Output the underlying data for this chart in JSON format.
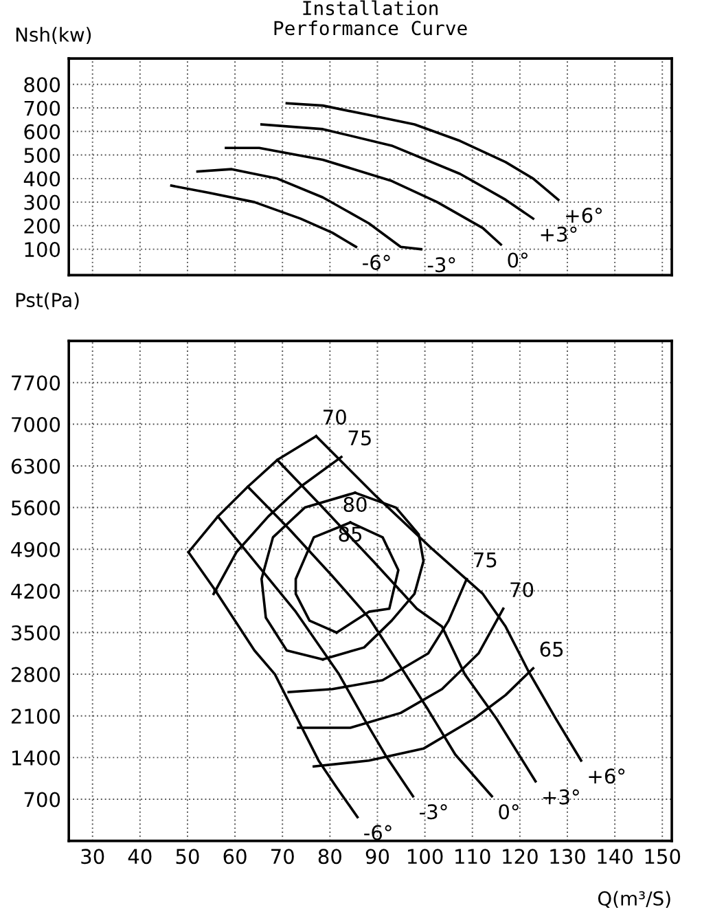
{
  "chart_data": [
    {
      "type": "line",
      "title": "Installation\nPerformance Curve",
      "ylabel": "Nsh(kw)",
      "xlim": [
        25,
        152
      ],
      "ylim": [
        -10,
        910
      ],
      "xticks": [
        30,
        40,
        50,
        60,
        70,
        80,
        90,
        100,
        110,
        120,
        130,
        140,
        150
      ],
      "yticks": [
        100,
        200,
        300,
        400,
        500,
        600,
        700,
        800
      ],
      "tick_labels": "y",
      "grid": true,
      "series": [
        {
          "name": "+6°",
          "color": "#000000",
          "x": [
            70.9,
            78.5,
            88.2,
            97.8,
            107.4,
            117.0,
            122.8,
            128.1
          ],
          "values": [
            720,
            710,
            670,
            630,
            560,
            470,
            400,
            310
          ]
        },
        {
          "name": "+3°",
          "color": "#000000",
          "x": [
            65.6,
            78.5,
            93.0,
            107.4,
            117.0,
            122.8
          ],
          "values": [
            630,
            610,
            540,
            420,
            310,
            230
          ]
        },
        {
          "name": "0°",
          "color": "#000000",
          "x": [
            58.1,
            65.1,
            78.5,
            93.0,
            102.6,
            112.2,
            116.0
          ],
          "values": [
            530,
            530,
            480,
            390,
            300,
            190,
            120
          ]
        },
        {
          "name": "-3°",
          "color": "#000000",
          "x": [
            52.1,
            59.3,
            68.9,
            78.5,
            88.2,
            94.9,
            99.2
          ],
          "values": [
            430,
            440,
            400,
            320,
            210,
            110,
            100
          ]
        },
        {
          "name": "-6°",
          "color": "#000000",
          "x": [
            46.6,
            54.5,
            64.1,
            73.8,
            80.5,
            85.5
          ],
          "values": [
            370,
            340,
            300,
            230,
            170,
            110
          ]
        }
      ]
    },
    {
      "type": "line",
      "ylabel": "Pst(Pa)",
      "xlabel": "Q(m³/S)",
      "xlim": [
        25,
        152
      ],
      "ylim": [
        0,
        8400
      ],
      "xticks": [
        30,
        40,
        50,
        60,
        70,
        80,
        90,
        100,
        110,
        120,
        130,
        140,
        150
      ],
      "yticks": [
        700,
        1400,
        2100,
        2800,
        3500,
        4200,
        4900,
        5600,
        6300,
        7000,
        7700
      ],
      "grid": true,
      "series": [
        {
          "name": "+6°",
          "color": "#000000",
          "x": [
            77.1,
            89.6,
            101.6,
            112.2,
            117.0,
            121.8,
            127.6,
            132.9
          ],
          "values": [
            6800,
            5800,
            4900,
            4150,
            3600,
            2850,
            2050,
            1350
          ]
        },
        {
          "name": "+3°",
          "color": "#000000",
          "x": [
            68.9,
            78.5,
            89.1,
            98.3,
            103.6,
            108.4,
            115.1,
            123.3
          ],
          "values": [
            6400,
            5600,
            4700,
            3900,
            3600,
            2800,
            2050,
            1000
          ]
        },
        {
          "name": "0°",
          "color": "#000000",
          "x": [
            62.7,
            71.3,
            80.5,
            88.2,
            95.9,
            100.7,
            106.4,
            114.1
          ],
          "values": [
            5950,
            5250,
            4450,
            3750,
            2800,
            2200,
            1450,
            750
          ]
        },
        {
          "name": "-3°",
          "color": "#000000",
          "x": [
            56.4,
            65.1,
            72.8,
            81.9,
            87.2,
            92.0,
            97.5
          ],
          "values": [
            5450,
            4600,
            3850,
            2800,
            2050,
            1400,
            750
          ]
        },
        {
          "name": "-6°",
          "color": "#000000",
          "x": [
            50.2,
            55.5,
            64.1,
            68.4,
            77.6,
            81.4,
            85.8
          ],
          "values": [
            4850,
            4250,
            3200,
            2800,
            1350,
            900,
            400
          ]
        },
        {
          "name": "70",
          "color": "#000000",
          "x": [
            50.2,
            56.4,
            62.7,
            68.9,
            77.1
          ],
          "values": [
            4850,
            5450,
            5950,
            6400,
            6800
          ]
        },
        {
          "name": "75",
          "color": "#000000",
          "x": [
            55.5,
            60.3,
            67.0,
            73.8,
            82.4
          ],
          "values": [
            4150,
            4850,
            5450,
            5950,
            6450
          ]
        },
        {
          "name": "80",
          "color": "#000000",
          "x": [
            78.5,
            87.2,
            93.0,
            97.8,
            99.7,
            98.7,
            93.9,
            85.3
          ],
          "values": [
            3050,
            3250,
            3700,
            4150,
            4700,
            5150,
            5600,
            5850
          ]
        },
        {
          "color": "#000000",
          "x": [
            85.3,
            74.7,
            68.0,
            65.6,
            66.5,
            70.9,
            78.5
          ],
          "values": [
            5850,
            5600,
            5100,
            4400,
            3750,
            3200,
            3050
          ]
        },
        {
          "name": "85",
          "color": "#000000",
          "x": [
            81.4,
            88.2,
            92.5,
            94.4,
            91.1,
            84.3
          ],
          "values": [
            3500,
            3850,
            3900,
            4550,
            5100,
            5350
          ]
        },
        {
          "color": "#000000",
          "x": [
            84.3,
            76.6,
            72.8,
            72.8,
            75.7,
            81.4
          ],
          "values": [
            5350,
            5100,
            4400,
            4150,
            3700,
            3500
          ]
        },
        {
          "name": "75",
          "color": "#000000",
          "x": [
            71.3,
            80.5,
            91.1,
            100.7,
            105.0,
            108.8
          ],
          "values": [
            2500,
            2550,
            2700,
            3150,
            3700,
            4400
          ]
        },
        {
          "name": "70",
          "color": "#000000",
          "x": [
            73.3,
            84.3,
            94.9,
            103.6,
            111.3,
            116.5
          ],
          "values": [
            1900,
            1900,
            2150,
            2550,
            3150,
            3900
          ]
        },
        {
          "name": "65",
          "color": "#000000",
          "x": [
            76.6,
            88.2,
            99.7,
            110.3,
            117.0,
            122.8
          ],
          "values": [
            1250,
            1350,
            1550,
            2050,
            2450,
            2900
          ]
        }
      ]
    }
  ]
}
